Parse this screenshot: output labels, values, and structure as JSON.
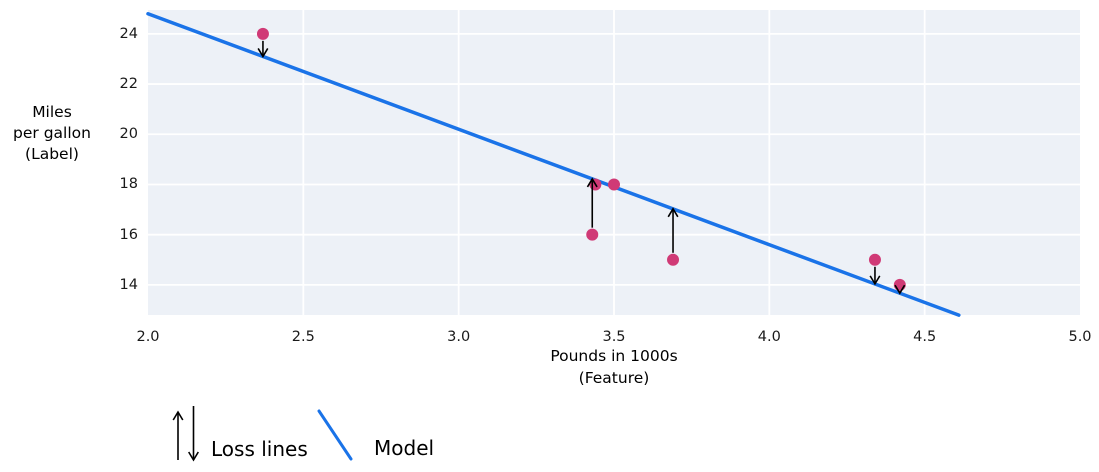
{
  "chart_data": {
    "type": "scatter",
    "title": "",
    "xlabel": "Pounds in 1000s (Feature)",
    "ylabel": "Miles per gallon (Label)",
    "xlabel_lines": [
      "Pounds in 1000s",
      "(Feature)"
    ],
    "ylabel_lines": [
      "Miles",
      "per gallon",
      "(Label)"
    ],
    "xlim": [
      2.0,
      5.0
    ],
    "ylim": [
      12.8,
      24.95
    ],
    "x_ticks": [
      "2.0",
      "2.5",
      "3.0",
      "3.5",
      "4.0",
      "4.5",
      "5.0"
    ],
    "y_ticks": [
      "14",
      "16",
      "18",
      "20",
      "22",
      "24"
    ],
    "grid": true,
    "legend_position": "bottom-left",
    "points": [
      {
        "x": 2.37,
        "y": 24
      },
      {
        "x": 3.43,
        "y": 16
      },
      {
        "x": 3.44,
        "y": 18
      },
      {
        "x": 3.5,
        "y": 18
      },
      {
        "x": 3.69,
        "y": 15
      },
      {
        "x": 4.34,
        "y": 15
      },
      {
        "x": 4.42,
        "y": 14
      }
    ],
    "model_line": {
      "slope": -4.6,
      "intercept": 34,
      "x_start": 2.0,
      "x_end": 4.61
    },
    "loss_lines": [
      {
        "x": 2.37,
        "point_y": 24,
        "model_y": 23.1,
        "direction": "down"
      },
      {
        "x": 3.43,
        "point_y": 16,
        "model_y": 18.22,
        "direction": "up"
      },
      {
        "x": 3.69,
        "point_y": 15,
        "model_y": 17.03,
        "direction": "up"
      },
      {
        "x": 4.34,
        "point_y": 15,
        "model_y": 14.04,
        "direction": "down"
      },
      {
        "x": 4.42,
        "point_y": 14,
        "model_y": 13.67,
        "direction": "down"
      }
    ],
    "legend": {
      "loss_label": "Loss lines",
      "model_label": "Model"
    },
    "colors": {
      "point": "#d03a76",
      "model_line": "#1a73e8",
      "loss_arrow": "#000000",
      "plot_bg": "#edf1f7",
      "grid": "#ffffff",
      "text": "#000000"
    }
  }
}
